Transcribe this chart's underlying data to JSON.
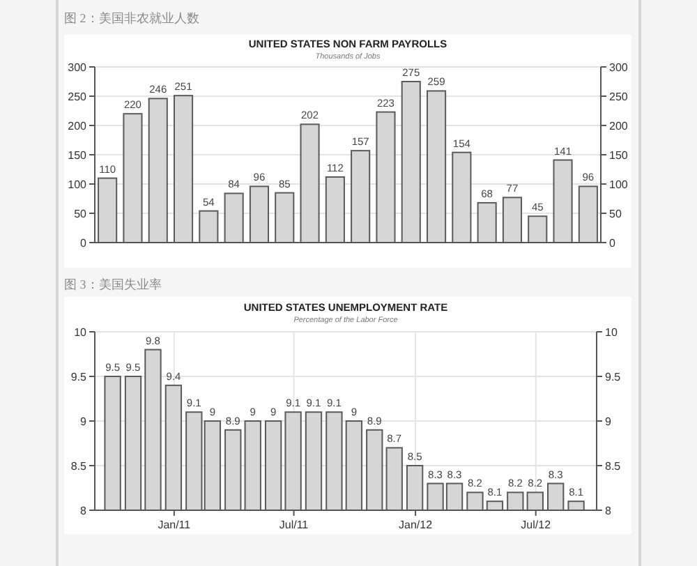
{
  "chart_data": [
    {
      "type": "bar",
      "title": "UNITED STATES NON FARM PAYROLLS",
      "subtitle": "Thousands of Jobs",
      "annotations": [
        "图 2：美国非农就业人数"
      ],
      "categories": [
        null,
        null,
        null,
        null,
        null,
        null,
        null,
        null,
        null,
        null,
        null,
        null,
        null,
        null,
        null,
        null,
        null,
        null,
        null,
        null
      ],
      "values": [
        110,
        220,
        246,
        251,
        54,
        84,
        96,
        85,
        202,
        112,
        157,
        223,
        275,
        259,
        154,
        68,
        77,
        45,
        141,
        96
      ],
      "color": "#d6d6d6",
      "ylim": [
        0,
        300
      ],
      "yticks": [
        0,
        50,
        100,
        150,
        200,
        250,
        300
      ],
      "y2lim": [
        0,
        300
      ],
      "y2ticks": [
        0,
        50,
        100,
        150,
        200,
        250,
        300
      ],
      "tick_labels": "y",
      "grid": "y",
      "data_labels": true
    },
    {
      "type": "bar",
      "title": "UNITED STATES UNEMPLOYMENT RATE",
      "subtitle": "Percentage of the Labor Force",
      "annotations": [
        "图 3：美国失业率"
      ],
      "x": [
        "2010-09-30",
        "2010-10-31",
        "2010-11-30",
        "2010-12-31",
        "2011-01-31",
        "2011-02-28",
        "2011-03-31",
        "2011-04-30",
        "2011-05-31",
        "2011-06-30",
        "2011-07-31",
        "2011-08-31",
        "2011-09-30",
        "2011-10-31",
        "2011-11-30",
        "2011-12-31",
        "2012-01-31",
        "2012-02-29",
        "2012-03-31",
        "2012-04-30",
        "2012-05-31",
        "2012-06-30",
        "2012-07-31",
        "2012-08-31"
      ],
      "values": [
        9.5,
        9.5,
        9.8,
        9.4,
        9.1,
        9,
        8.9,
        9,
        9,
        9.1,
        9.1,
        9.1,
        9,
        8.9,
        8.7,
        8.5,
        8.3,
        8.3,
        8.2,
        8.1,
        8.2,
        8.2,
        8.3,
        8.1
      ],
      "color": "#d6d6d6",
      "xlim": [
        "2010-09-03",
        "2012-10-01"
      ],
      "xticks": [
        {
          "value": "2011-01-01",
          "label": "Jan/11"
        },
        {
          "value": "2011-07-01",
          "label": "Jul/11"
        },
        {
          "value": "2012-01-01",
          "label": "Jan/12"
        },
        {
          "value": "2012-07-01",
          "label": "Jul/12"
        }
      ],
      "ylim": [
        8,
        10
      ],
      "yticks": [
        8,
        8.5,
        9,
        9.5,
        10
      ],
      "y2lim": [
        8,
        10
      ],
      "y2ticks": [
        8,
        8.5,
        9,
        9.5,
        10
      ],
      "grid": true,
      "data_labels": true
    }
  ]
}
